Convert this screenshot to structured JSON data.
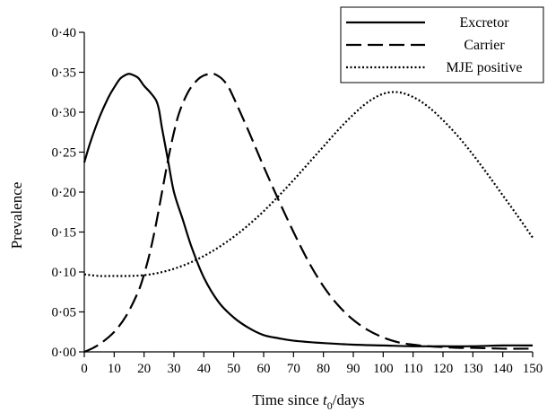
{
  "chart_data": {
    "type": "line",
    "title": "",
    "xlabel": {
      "prefix": "Time since ",
      "var": "t",
      "sub": "0",
      "suffix": "/days"
    },
    "ylabel": "Prevalence",
    "xlim": [
      0,
      150
    ],
    "ylim": [
      0,
      0.4
    ],
    "x_ticks": [
      0,
      10,
      20,
      30,
      40,
      50,
      60,
      70,
      80,
      90,
      100,
      110,
      120,
      130,
      140,
      150
    ],
    "x_tick_labels": [
      "0",
      "10",
      "20",
      "30",
      "40",
      "50",
      "60",
      "70",
      "80",
      "90",
      "100",
      "110",
      "120",
      "130",
      "140",
      "150"
    ],
    "y_ticks": [
      0,
      0.05,
      0.1,
      0.15,
      0.2,
      0.25,
      0.3,
      0.35,
      0.4
    ],
    "y_tick_labels": [
      "0·00",
      "0·05",
      "0·10",
      "0·15",
      "0·20",
      "0·25",
      "0·30",
      "0·35",
      "0·40"
    ],
    "grid": false,
    "legend_position": "top-right",
    "series": [
      {
        "name": "Excretor",
        "style": "solid",
        "x": [
          0,
          2,
          5,
          8,
          10,
          12,
          14,
          15,
          16,
          18,
          20,
          22,
          24,
          25,
          26,
          28,
          30,
          33,
          36,
          40,
          45,
          50,
          55,
          60,
          65,
          70,
          80,
          90,
          100,
          110,
          120,
          130,
          140,
          150
        ],
        "y": [
          0.237,
          0.262,
          0.293,
          0.318,
          0.331,
          0.342,
          0.347,
          0.348,
          0.347,
          0.343,
          0.333,
          0.325,
          0.315,
          0.303,
          0.28,
          0.24,
          0.2,
          0.165,
          0.13,
          0.093,
          0.062,
          0.043,
          0.03,
          0.021,
          0.017,
          0.014,
          0.011,
          0.009,
          0.008,
          0.007,
          0.007,
          0.007,
          0.008,
          0.008
        ]
      },
      {
        "name": "Carrier",
        "style": "dashed",
        "x": [
          0,
          3,
          6,
          10,
          14,
          18,
          20,
          22,
          24,
          26,
          28,
          30,
          32,
          35,
          38,
          40,
          42,
          43,
          44,
          46,
          48,
          50,
          55,
          60,
          65,
          70,
          75,
          80,
          85,
          90,
          95,
          100,
          105,
          110,
          115,
          120,
          125,
          130,
          140,
          150
        ],
        "y": [
          0.0,
          0.005,
          0.012,
          0.025,
          0.045,
          0.075,
          0.097,
          0.125,
          0.16,
          0.2,
          0.24,
          0.275,
          0.302,
          0.327,
          0.341,
          0.346,
          0.348,
          0.348,
          0.347,
          0.342,
          0.333,
          0.318,
          0.276,
          0.232,
          0.19,
          0.15,
          0.113,
          0.082,
          0.058,
          0.04,
          0.027,
          0.018,
          0.012,
          0.009,
          0.007,
          0.006,
          0.005,
          0.005,
          0.004,
          0.004
        ]
      },
      {
        "name": "MJE positive",
        "style": "dotted",
        "x": [
          0,
          5,
          10,
          15,
          20,
          25,
          30,
          35,
          40,
          45,
          50,
          55,
          60,
          65,
          70,
          75,
          80,
          85,
          90,
          95,
          100,
          105,
          110,
          115,
          120,
          125,
          130,
          135,
          140,
          145,
          150
        ],
        "y": [
          0.097,
          0.095,
          0.095,
          0.095,
          0.096,
          0.099,
          0.104,
          0.111,
          0.12,
          0.131,
          0.144,
          0.159,
          0.176,
          0.195,
          0.215,
          0.236,
          0.257,
          0.278,
          0.297,
          0.313,
          0.323,
          0.325,
          0.319,
          0.307,
          0.29,
          0.27,
          0.247,
          0.222,
          0.196,
          0.17,
          0.143
        ]
      }
    ]
  }
}
